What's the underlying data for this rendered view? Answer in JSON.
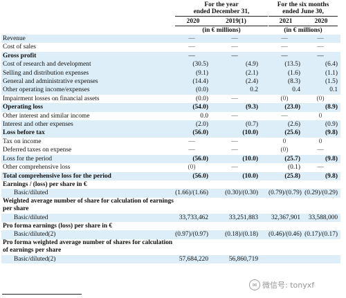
{
  "header": {
    "group1_title": "For the year",
    "group1_sub": "ended December 31,",
    "group2_title": "For the six months",
    "group2_sub": "ended June 30,",
    "col_2020a": "2020",
    "col_2019": "2019(1)",
    "col_2021": "2021",
    "col_2020b": "2020",
    "unit_left": "(in € millions)",
    "unit_right": "(in € millions)"
  },
  "rows": [
    {
      "label": "Revenue",
      "v": [
        "—",
        "—",
        "—",
        "—"
      ],
      "dash": true,
      "shade": true
    },
    {
      "label": "Cost of sales",
      "v": [
        "—",
        "—",
        "—",
        "—"
      ],
      "dash": true,
      "shade": false
    },
    {
      "label": "Gross profit",
      "v": [
        "—",
        "—",
        "—",
        "—"
      ],
      "dash": true,
      "shade": true,
      "bold": true
    },
    {
      "label": "Cost of research and development",
      "v": [
        "(30.5)",
        "(4.9)",
        "(13.5)",
        "(6.4)"
      ],
      "shade": true
    },
    {
      "label": "Selling and distribution expenses",
      "v": [
        "(9.1)",
        "(2.1)",
        "(1.6)",
        "(1.1)"
      ],
      "shade": true
    },
    {
      "label": "General and administrative expenses",
      "v": [
        "(14.4)",
        "(2.4)",
        "(8.3)",
        "(1.5)"
      ],
      "shade": true
    },
    {
      "label": "Other operating income/expenses",
      "v": [
        "(0.0)",
        "0.2",
        "0.4",
        "0.1"
      ],
      "shade": true
    },
    {
      "label": "Impairment losses on financial assets",
      "v": [
        "(0.0)",
        "—",
        "(0)",
        "(0)"
      ],
      "shade": false
    },
    {
      "label": "Operating loss",
      "v": [
        "(54.0)",
        "(9.3)",
        "(23.0)",
        "(8.9)"
      ],
      "shade": true,
      "bold": true
    },
    {
      "label": "Other interest and similar income",
      "v": [
        "0.0",
        "—",
        "—",
        "0"
      ],
      "shade": false
    },
    {
      "label": "Interest and other expenses",
      "v": [
        "(2.0)",
        "(0.7)",
        "(2.6)",
        "(0.9)"
      ],
      "shade": true
    },
    {
      "label": "Loss before tax",
      "v": [
        "(56.0)",
        "(10.0)",
        "(25.6)",
        "(9.8)"
      ],
      "shade": true,
      "bold": true
    },
    {
      "label": "Tax on income",
      "v": [
        "—",
        "—",
        "0",
        "0"
      ],
      "shade": false
    },
    {
      "label": "Deferred taxes on expense",
      "v": [
        "—",
        "—",
        "(0)",
        "—"
      ],
      "shade": false
    },
    {
      "label": "Loss for the period",
      "v": [
        "(56.0)",
        "(10.0)",
        "(25.7)",
        "(9.8)"
      ],
      "shade": true,
      "boldnum": true
    },
    {
      "label": "Other comprehensive loss",
      "v": [
        "(0)",
        "—",
        "(0.1)",
        "—"
      ],
      "shade": false
    },
    {
      "label": "Total comprehensive loss for the period",
      "v": [
        "(56.0)",
        "(10.0)",
        "(25.8)",
        "(9.8)"
      ],
      "shade": true,
      "bold": true
    },
    {
      "label": "Earnings / (loss) per share in €",
      "section": true
    },
    {
      "label": "Basic/diluted",
      "v": [
        "(1.66)/(1.66)",
        "(0.30)/(0.30)",
        "(0.79)/(0.79)",
        "(0.29)/(0.29)"
      ],
      "shade": true,
      "indent": true
    },
    {
      "label": "Weighted average number of share for calculation of earnings per share",
      "section": true,
      "wrap": true
    },
    {
      "label": "Basic/diluted",
      "v": [
        "33,733,462",
        "33,251,883",
        "32,367,901",
        "33,588,000"
      ],
      "shade": true,
      "indent": true
    },
    {
      "label": "Pro forma earnings (loss) per share in €",
      "section": true
    },
    {
      "label": "Basic/diluted(2)",
      "v": [
        "(0.97)/(0.97)",
        "(0.18)/(0.18)",
        "(0.46)/(0.46)",
        "(0.17)/(0.17)"
      ],
      "shade": true,
      "indent": true
    },
    {
      "label": "Pro forma weighted average number of shares for calculation of earnings per share",
      "section": true,
      "wrap": true
    },
    {
      "label": "Basic/diluted(2)",
      "v": [
        "57,684,220",
        "56,860,719",
        "",
        ""
      ],
      "shade": true,
      "indent": true
    }
  ],
  "watermark": {
    "text": "微信号: tonyxf"
  }
}
